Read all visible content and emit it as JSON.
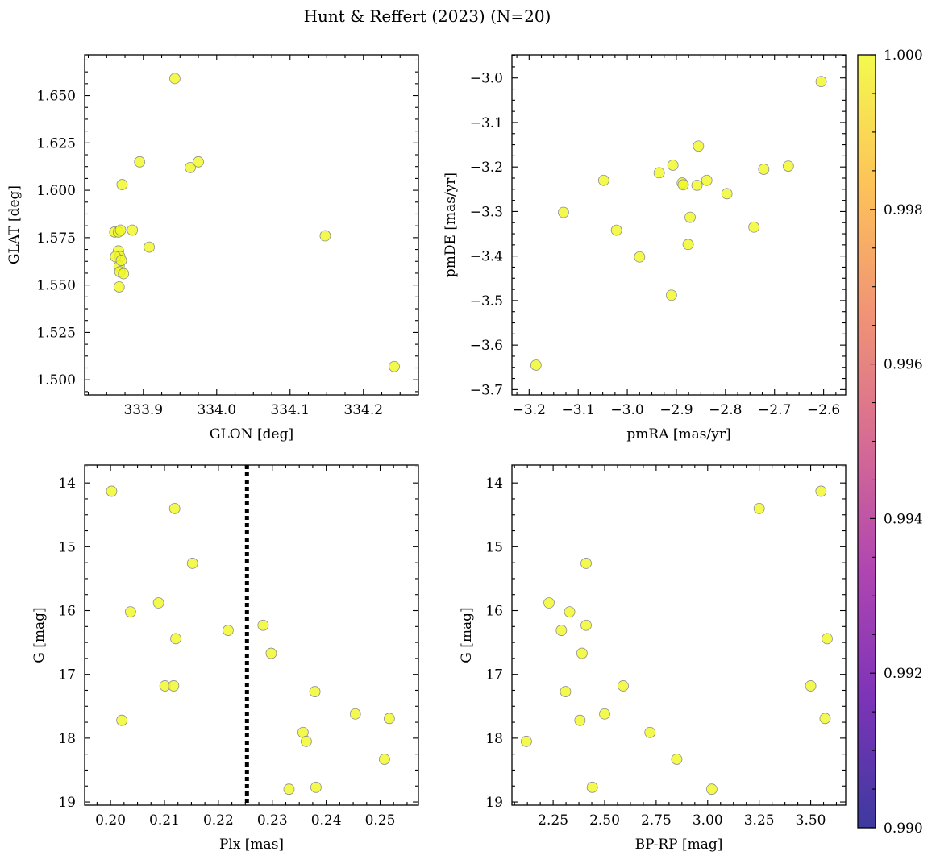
{
  "figure": {
    "title": "Hunt & Reffert (2023) (N=20)"
  },
  "colors": {
    "marker_fill": "#f0f921",
    "marker_edge": "#8f8f8f",
    "marker_alpha": 0.8,
    "cmap": [
      "#0d0887",
      "#5c01a6",
      "#9c179e",
      "#cc4778",
      "#ed7953",
      "#fdb42f",
      "#f0f921"
    ],
    "vline": "#000000"
  },
  "chart_data": [
    {
      "id": "sky",
      "type": "scatter",
      "xlabel": "GLON [deg]",
      "ylabel": "GLAT [deg]",
      "xlim": [
        333.82,
        334.275
      ],
      "ylim": [
        1.492,
        1.6715
      ],
      "xticks": [
        333.9,
        334.0,
        334.1,
        334.2
      ],
      "xtick_labels": [
        "333.9",
        "334.0",
        "334.1",
        "334.2"
      ],
      "yticks": [
        1.5,
        1.525,
        1.55,
        1.575,
        1.6,
        1.625,
        1.65
      ],
      "ytick_labels": [
        "1.500",
        "1.525",
        "1.550",
        "1.575",
        "1.600",
        "1.625",
        "1.650"
      ],
      "x": [
        333.943,
        333.895,
        333.964,
        333.975,
        333.871,
        333.861,
        333.866,
        333.869,
        333.885,
        333.866,
        333.868,
        333.867,
        333.862,
        333.908,
        333.868,
        333.873,
        333.867,
        334.148,
        334.242,
        333.87
      ],
      "y": [
        1.659,
        1.615,
        1.612,
        1.615,
        1.603,
        1.578,
        1.578,
        1.579,
        1.579,
        1.568,
        1.565,
        1.56,
        1.565,
        1.57,
        1.557,
        1.556,
        1.549,
        1.576,
        1.507,
        1.563
      ],
      "color_values": [
        1,
        1,
        1,
        1,
        1,
        1,
        1,
        1,
        1,
        1,
        1,
        1,
        1,
        1,
        1,
        1,
        1,
        1,
        1,
        1
      ]
    },
    {
      "id": "pm",
      "type": "scatter",
      "xlabel": "pmRA [mas/yr]",
      "ylabel": "pmDE [mas/yr]",
      "xlim": [
        -3.235,
        -2.555
      ],
      "ylim": [
        -3.712,
        -2.948
      ],
      "xticks": [
        -3.2,
        -3.1,
        -3.0,
        -2.9,
        -2.8,
        -2.7,
        -2.6
      ],
      "xtick_labels": [
        "−3.2",
        "−3.1",
        "−3.0",
        "−2.9",
        "−2.8",
        "−2.7",
        "−2.6"
      ],
      "yticks": [
        -3.7,
        -3.6,
        -3.5,
        -3.4,
        -3.3,
        -3.2,
        -3.1,
        -3.0
      ],
      "ytick_labels": [
        "−3.7",
        "−3.6",
        "−3.5",
        "−3.4",
        "−3.3",
        "−3.2",
        "−3.1",
        "−3.0"
      ],
      "x": [
        -2.605,
        -2.855,
        -2.672,
        -2.722,
        -2.907,
        -2.935,
        -3.048,
        -2.888,
        -2.886,
        -2.838,
        -2.858,
        -2.797,
        -3.13,
        -2.872,
        -3.022,
        -2.742,
        -2.876,
        -2.975,
        -2.91,
        -3.186
      ],
      "y": [
        -3.008,
        -3.153,
        -3.198,
        -3.205,
        -3.196,
        -3.213,
        -3.23,
        -3.236,
        -3.24,
        -3.23,
        -3.241,
        -3.26,
        -3.302,
        -3.313,
        -3.342,
        -3.335,
        -3.374,
        -3.402,
        -3.488,
        -3.645
      ],
      "color_values": [
        1,
        1,
        1,
        1,
        1,
        1,
        1,
        1,
        1,
        1,
        1,
        1,
        1,
        1,
        1,
        1,
        1,
        1,
        1,
        1
      ]
    },
    {
      "id": "plx",
      "type": "scatter",
      "xlabel": "Plx [mas]",
      "ylabel": "G [mag]",
      "xlim": [
        0.1952,
        0.2571
      ],
      "ylim": [
        19.05,
        13.72
      ],
      "y_inverted": true,
      "xticks": [
        0.2,
        0.21,
        0.22,
        0.23,
        0.24,
        0.25
      ],
      "xtick_labels": [
        "0.20",
        "0.21",
        "0.22",
        "0.23",
        "0.24",
        "0.25"
      ],
      "yticks": [
        14,
        15,
        16,
        17,
        18,
        19
      ],
      "ytick_labels": [
        "14",
        "15",
        "16",
        "17",
        "18",
        "19"
      ],
      "vline_x": 0.2253,
      "x": [
        0.2002,
        0.2119,
        0.2152,
        0.2089,
        0.2037,
        0.2121,
        0.2101,
        0.2117,
        0.2021,
        0.2218,
        0.2283,
        0.2298,
        0.2379,
        0.2454,
        0.2517,
        0.2357,
        0.2363,
        0.2508,
        0.2331,
        0.2381
      ],
      "y": [
        14.13,
        14.4,
        15.26,
        15.88,
        16.02,
        16.44,
        17.18,
        17.18,
        17.72,
        16.31,
        16.23,
        16.67,
        17.27,
        17.62,
        17.69,
        17.91,
        18.05,
        18.33,
        18.8,
        18.77
      ],
      "color_values": [
        1,
        1,
        1,
        1,
        1,
        1,
        1,
        1,
        1,
        1,
        1,
        1,
        1,
        1,
        1,
        1,
        1,
        1,
        1,
        1
      ]
    },
    {
      "id": "cmd",
      "type": "scatter",
      "xlabel": "BP-RP [mag]",
      "ylabel": "G [mag]",
      "xlim": [
        2.05,
        3.67
      ],
      "ylim": [
        19.05,
        13.72
      ],
      "y_inverted": true,
      "xticks": [
        2.25,
        2.5,
        2.75,
        3.0,
        3.25,
        3.5
      ],
      "xtick_labels": [
        "2.25",
        "2.50",
        "2.75",
        "3.00",
        "3.25",
        "3.50"
      ],
      "yticks": [
        14,
        15,
        16,
        17,
        18,
        19
      ],
      "ytick_labels": [
        "14",
        "15",
        "16",
        "17",
        "18",
        "19"
      ],
      "x": [
        3.55,
        3.25,
        2.41,
        2.23,
        2.33,
        2.29,
        2.41,
        2.39,
        2.31,
        2.59,
        2.38,
        2.5,
        2.72,
        2.12,
        2.85,
        2.44,
        3.02,
        3.5,
        3.58,
        3.57
      ],
      "y": [
        14.13,
        14.4,
        15.26,
        15.88,
        16.02,
        16.31,
        16.23,
        16.67,
        17.27,
        17.18,
        17.72,
        17.62,
        17.91,
        18.05,
        18.33,
        18.77,
        18.8,
        17.18,
        16.44,
        17.69
      ],
      "color_values": [
        1,
        1,
        1,
        1,
        1,
        1,
        1,
        1,
        1,
        1,
        1,
        1,
        1,
        1,
        1,
        1,
        1,
        1,
        1,
        1
      ]
    }
  ],
  "colorbar": {
    "vmin": 0.99,
    "vmax": 1.0,
    "ticks": [
      0.99,
      0.992,
      0.994,
      0.996,
      0.998,
      1.0
    ],
    "tick_labels": [
      "0.990",
      "0.992",
      "0.994",
      "0.996",
      "0.998",
      "1.000"
    ]
  }
}
